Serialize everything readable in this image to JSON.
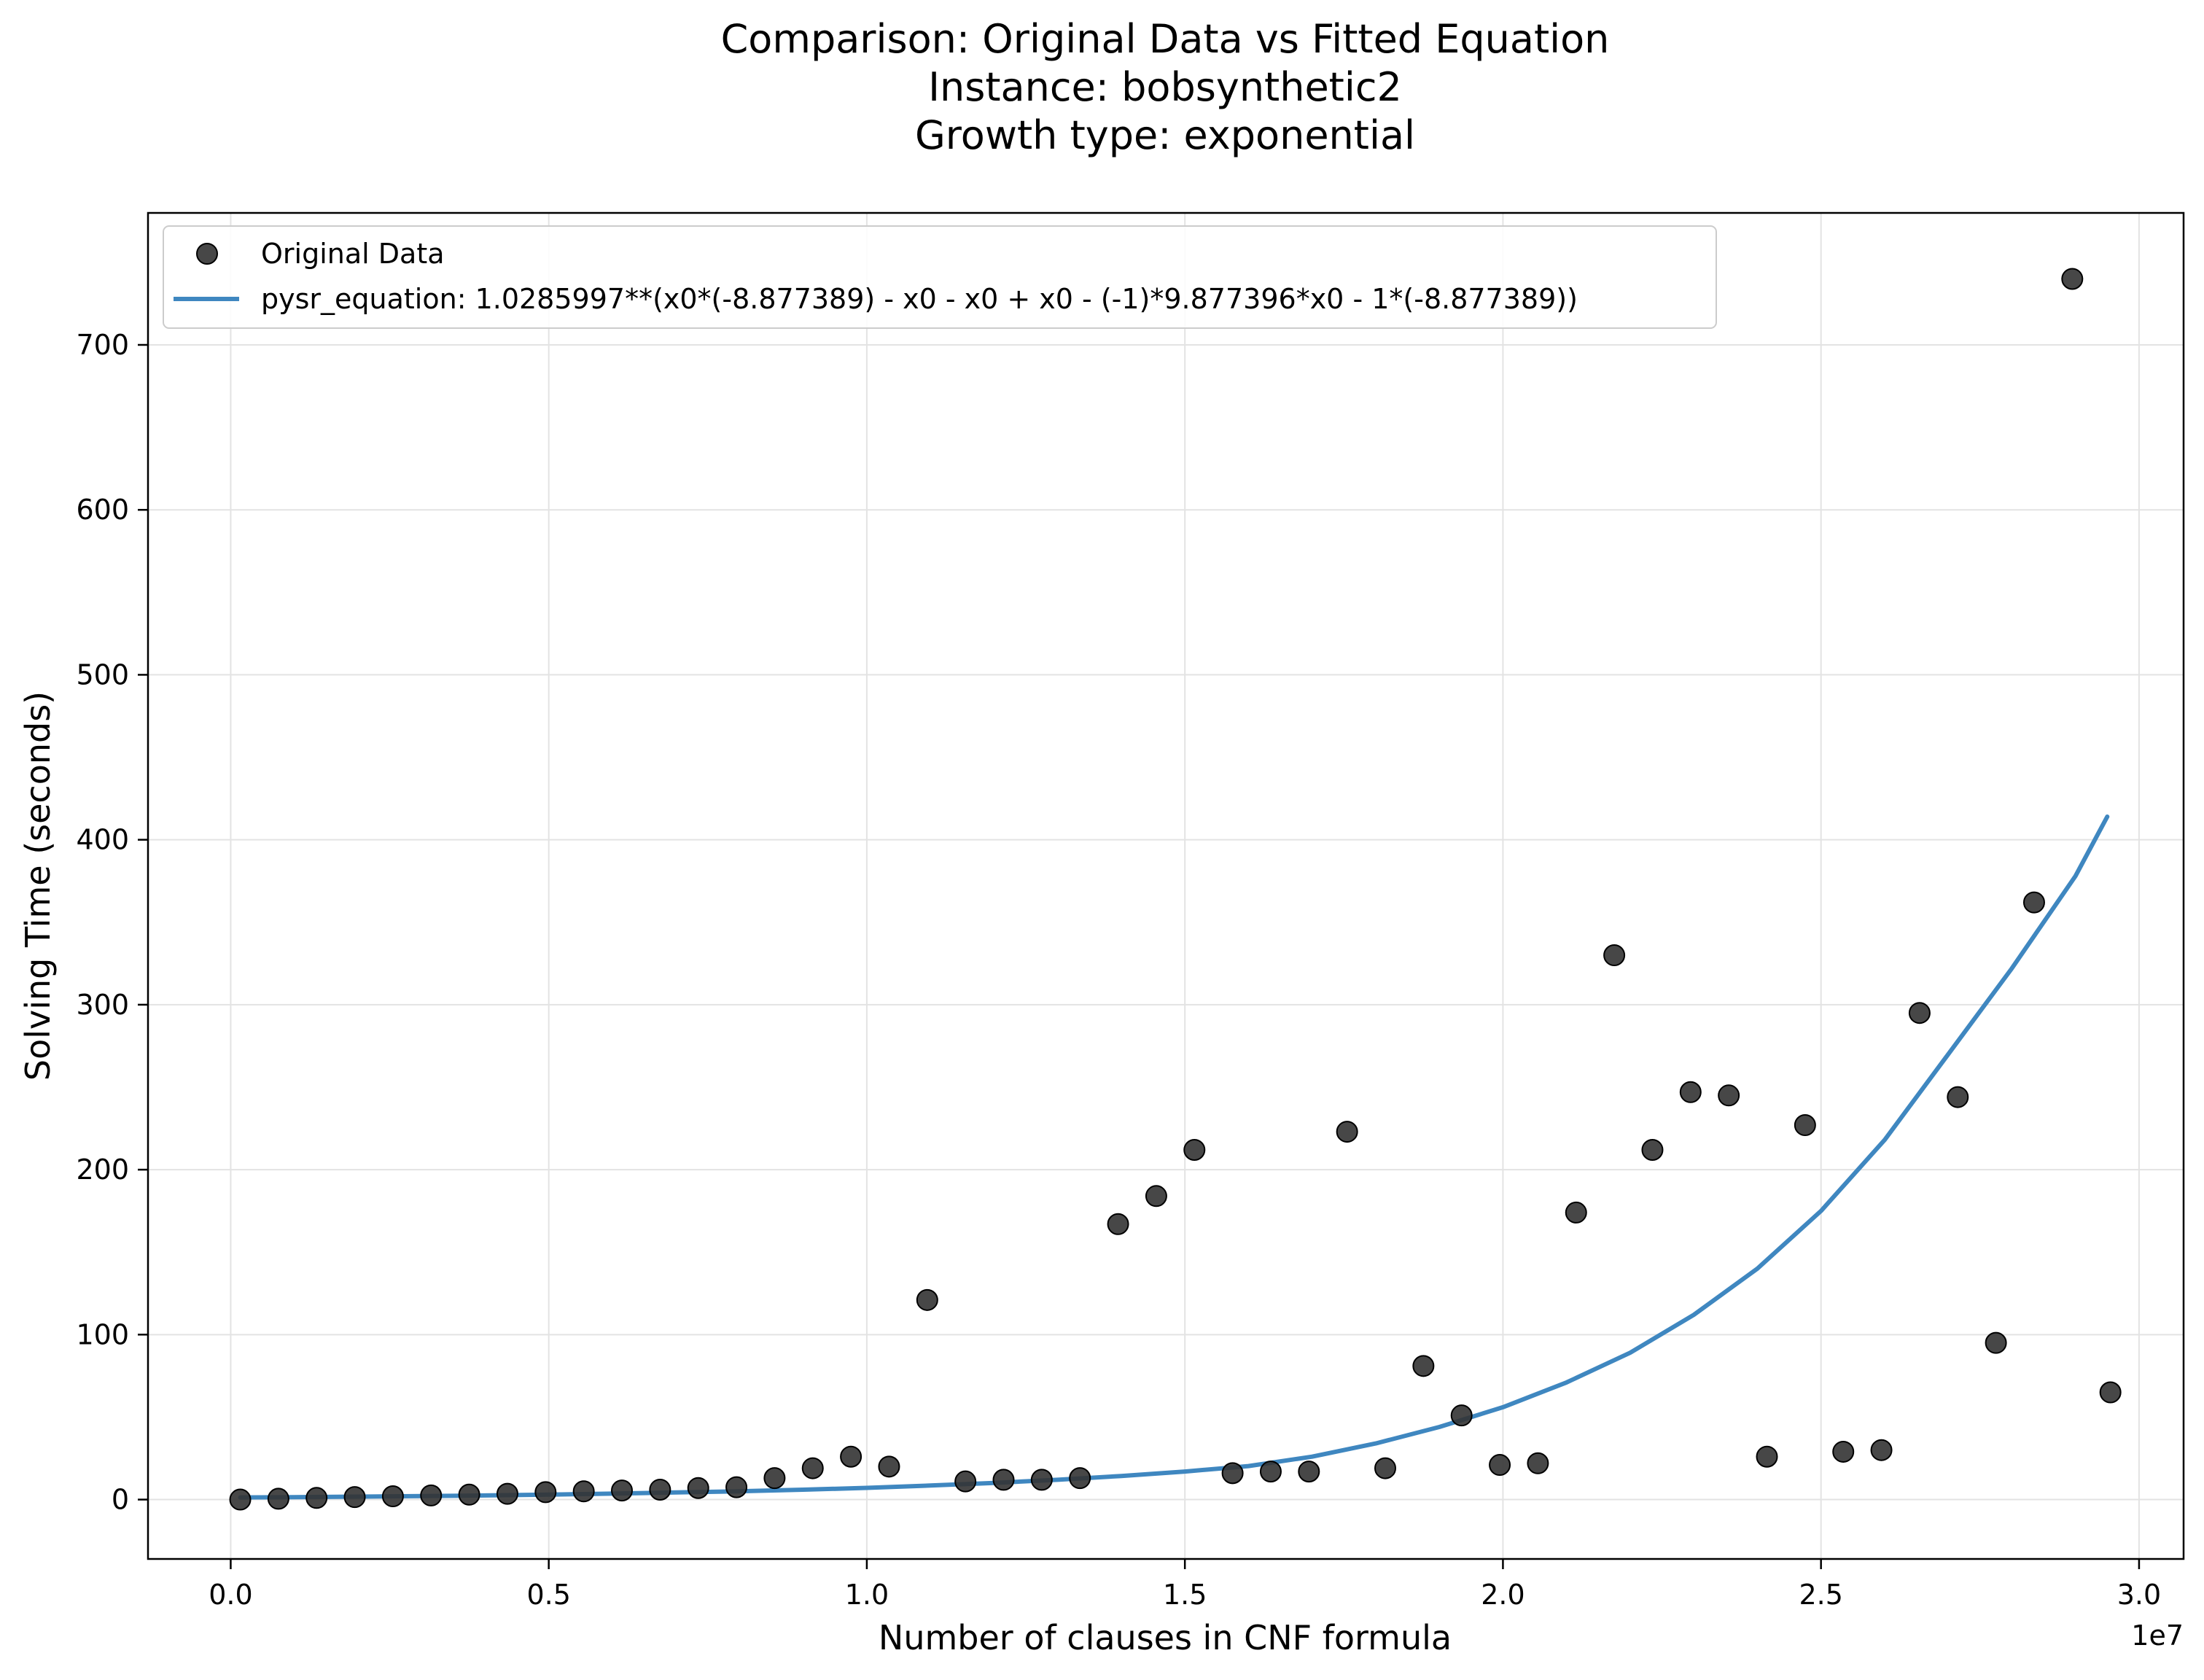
{
  "chart_data": {
    "type": "scatter",
    "title_lines": [
      "Comparison: Original Data vs Fitted Equation",
      "Instance: bobsynthetic2",
      "Growth type: exponential"
    ],
    "xlabel": "Number of clauses in CNF formula",
    "ylabel": "Solving Time (seconds)",
    "x_offset_text": "1e7",
    "xlim": [
      -0.13,
      3.07
    ],
    "ylim": [
      -36,
      780
    ],
    "x_ticks": [
      0.0,
      0.5,
      1.0,
      1.5,
      2.0,
      2.5,
      3.0
    ],
    "x_tick_labels": [
      "0.0",
      "0.5",
      "1.0",
      "1.5",
      "2.0",
      "2.5",
      "3.0"
    ],
    "y_ticks": [
      0,
      100,
      200,
      300,
      400,
      500,
      600,
      700
    ],
    "y_tick_labels": [
      "0",
      "100",
      "200",
      "300",
      "400",
      "500",
      "600",
      "700"
    ],
    "grid": true,
    "legend_position": "top-left",
    "series": [
      {
        "name": "Original Data",
        "kind": "scatter",
        "color": "#333333",
        "x": [
          0.015,
          0.075,
          0.135,
          0.195,
          0.255,
          0.315,
          0.375,
          0.435,
          0.495,
          0.555,
          0.615,
          0.675,
          0.735,
          0.795,
          0.855,
          0.915,
          0.975,
          1.035,
          1.095,
          1.155,
          1.215,
          1.275,
          1.335,
          1.395,
          1.455,
          1.515,
          1.575,
          1.635,
          1.695,
          1.755,
          1.815,
          1.875,
          1.935,
          1.995,
          2.055,
          2.115,
          2.175,
          2.235,
          2.295,
          2.355,
          2.415,
          2.475,
          2.535,
          2.595,
          2.655,
          2.715,
          2.775,
          2.835,
          2.895,
          2.955
        ],
        "y": [
          0,
          0.5,
          1,
          1.5,
          2,
          2.5,
          3,
          3.5,
          4.5,
          5,
          5.5,
          6,
          7,
          7.5,
          13,
          19,
          26,
          20,
          121,
          11,
          12,
          12,
          13,
          167,
          184,
          212,
          16,
          17,
          17,
          223,
          19,
          81,
          51,
          21,
          22,
          174,
          330,
          212,
          247,
          245,
          26,
          227,
          29,
          30,
          295,
          244,
          95,
          362,
          740,
          65
        ]
      },
      {
        "name": "pysr_equation: 1.0285997**(x0*(-8.877389) - x0 - x0 + x0 - (-1)*9.877396*x0 - 1*(-8.877389))",
        "kind": "line",
        "color": "#3f87c0",
        "x": [
          0.015,
          0.1,
          0.2,
          0.3,
          0.4,
          0.5,
          0.6,
          0.7,
          0.8,
          0.9,
          1.0,
          1.1,
          1.2,
          1.3,
          1.4,
          1.5,
          1.6,
          1.7,
          1.8,
          1.9,
          2.0,
          2.1,
          2.2,
          2.3,
          2.4,
          2.5,
          2.6,
          2.7,
          2.8,
          2.9,
          2.95
        ],
        "y": [
          1.3,
          1.5,
          1.8,
          2.1,
          2.5,
          3.0,
          3.6,
          4.3,
          5.0,
          6.0,
          7.1,
          8.5,
          10.1,
          12.0,
          14.3,
          17.0,
          20.3,
          26.0,
          34.0,
          44.0,
          56.0,
          71.0,
          89.0,
          112.0,
          140.0,
          175.0,
          218.0,
          270.0,
          322.0,
          378.0,
          414.0
        ]
      }
    ]
  }
}
